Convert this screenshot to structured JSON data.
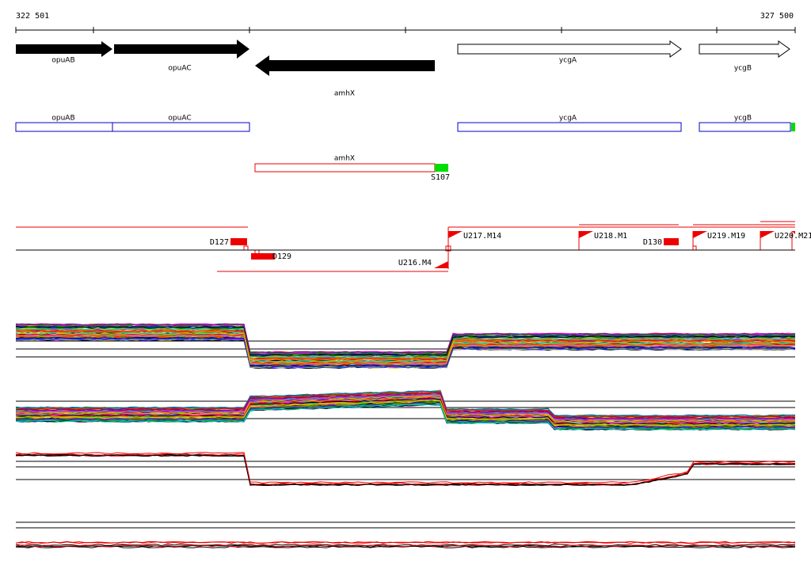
{
  "ruler": {
    "start": "322 501",
    "end": "327 500"
  },
  "genes": [
    "opuAB",
    "opuAC",
    "amhX",
    "ycgA",
    "ycgB"
  ],
  "transcripts": [
    "opuAB",
    "opuAC",
    "ycgA",
    "ycgB"
  ],
  "antisense": {
    "label": "amhX",
    "site": "S107"
  },
  "features": [
    "D127",
    "D129",
    "U216.M4",
    "U217.M14",
    "U218.M1",
    "D130",
    "U219.M19",
    "U220.M21"
  ]
}
